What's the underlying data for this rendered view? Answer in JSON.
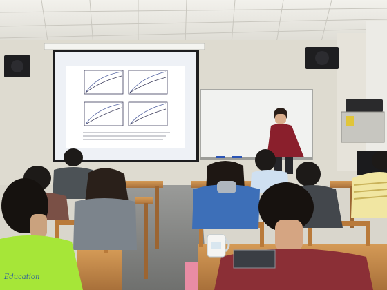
{
  "scene": {
    "corner_caption": "Education"
  },
  "colors": {
    "ceiling": "#e9e8e2",
    "wall": "#dedbd0",
    "floor": "#8d8e8c",
    "screen": "#eef1f6",
    "whiteboard": "#eef0ef",
    "desk_wood": "#c58e4d",
    "chair_wood": "#b97a3a",
    "presenter_shirt": "#8a1f2c",
    "green_shirt": "#a6e638",
    "blue_hoodie": "#3d6fb8",
    "maroon_shirt": "#8b2f36"
  },
  "icons": [
    "speaker-icon",
    "projector-icon"
  ]
}
